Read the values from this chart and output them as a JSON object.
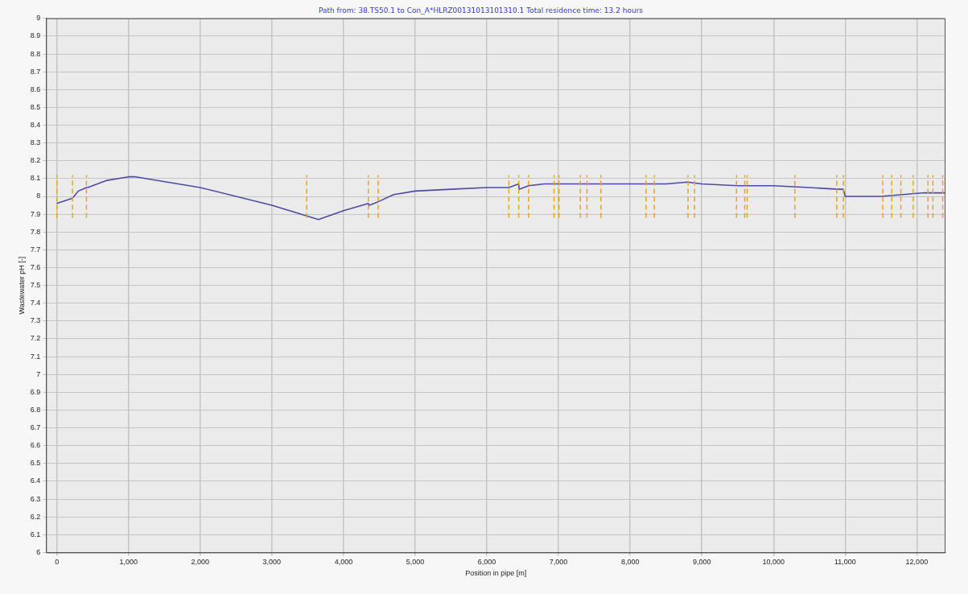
{
  "chart_data": {
    "type": "line",
    "title": "Path from: 38.TS50.1 to Con_A*HLRZ00131013101310.1 Total residence time: 13.2 hours",
    "xlabel": "Position in pipe [m]",
    "ylabel": "Wastewater pH [-]",
    "xlim": [
      -150,
      12400
    ],
    "ylim": [
      6,
      9
    ],
    "xticks": [
      0,
      {
        "value": 1000,
        "label": "1,000"
      },
      {
        "value": 2000,
        "label": "2,000"
      },
      {
        "value": 3000,
        "label": "3,000"
      },
      {
        "value": 4000,
        "label": "4,000"
      },
      {
        "value": 5000,
        "label": "5,000"
      },
      {
        "value": 6000,
        "label": "6,000"
      },
      {
        "value": 7000,
        "label": "7,000"
      },
      {
        "value": 8000,
        "label": "8,000"
      },
      {
        "value": 9000,
        "label": "9,000"
      },
      {
        "value": 10000,
        "label": "10,000"
      },
      {
        "value": 11000,
        "label": "11,000"
      },
      {
        "value": 12000,
        "label": "12,000"
      }
    ],
    "yticks": [
      6,
      6.1,
      6.2,
      6.3,
      6.4,
      6.5,
      6.6,
      6.7,
      6.8,
      6.9,
      7,
      7.1,
      7.2,
      7.3,
      7.4,
      7.5,
      7.6,
      7.7,
      7.8,
      7.9,
      8,
      8.1,
      8.2,
      8.3,
      8.4,
      8.5,
      8.6,
      8.7,
      8.8,
      8.9,
      9
    ],
    "grid": true,
    "legend": false,
    "marker": "none",
    "series": [
      {
        "line_style": "dashed",
        "color": "#e8a317",
        "x": [
          0,
          0,
          null,
          218,
          218,
          null,
          413,
          413,
          null,
          3486,
          3486,
          null,
          4346,
          4346,
          null,
          4484,
          4484,
          null,
          6307,
          6307,
          null,
          6445,
          6445,
          null,
          6583,
          6583,
          null,
          6938,
          6938,
          null,
          7007,
          7007,
          null,
          7305,
          7305,
          null,
          7397,
          7397,
          null,
          7592,
          7592,
          null,
          8222,
          8222,
          null,
          8337,
          8337,
          null,
          8807,
          8807,
          null,
          8899,
          8899,
          null,
          9484,
          9484,
          null,
          9599,
          9599,
          null,
          9633,
          9633,
          null,
          10298,
          10298,
          null,
          10883,
          10883,
          null,
          10975,
          10975,
          null,
          11525,
          11525,
          null,
          11651,
          11651,
          null,
          11778,
          11778,
          null,
          11950,
          11950,
          null,
          12156,
          12156,
          null,
          12225,
          12225,
          null,
          12362,
          12362,
          null
        ],
        "values": [
          7.88,
          8.12,
          null,
          7.88,
          8.12,
          null,
          7.88,
          8.12,
          null,
          7.88,
          8.12,
          null,
          7.88,
          8.12,
          null,
          7.88,
          8.12,
          null,
          7.88,
          8.12,
          null,
          7.88,
          8.12,
          null,
          7.88,
          8.12,
          null,
          7.88,
          8.12,
          null,
          7.88,
          8.12,
          null,
          7.88,
          8.12,
          null,
          7.88,
          8.12,
          null,
          7.88,
          8.12,
          null,
          7.88,
          8.12,
          null,
          7.88,
          8.12,
          null,
          7.88,
          8.12,
          null,
          7.88,
          8.12,
          null,
          7.88,
          8.12,
          null,
          7.88,
          8.12,
          null,
          7.88,
          8.12,
          null,
          7.88,
          8.12,
          null,
          7.88,
          8.12,
          null,
          7.88,
          8.12,
          null,
          7.88,
          8.12,
          null,
          7.88,
          8.12,
          null,
          7.88,
          8.12,
          null,
          7.88,
          8.12,
          null,
          7.88,
          8.12,
          null,
          7.88,
          8.12,
          null,
          7.88,
          8.12,
          null
        ]
      },
      {
        "line_style": "solid",
        "color": "#4b4ba6",
        "x": [
          0,
          218,
          300,
          413,
          430,
          700,
          1000,
          1100,
          2000,
          3000,
          3486,
          3650,
          4000,
          4346,
          4360,
          4484,
          4700,
          5000,
          5500,
          6000,
          6307,
          6445,
          6450,
          6583,
          6800,
          7000,
          8000,
          8500,
          8800,
          9000,
          9500,
          9633,
          10000,
          10500,
          10900,
          10975,
          11000,
          11500,
          11800,
          12100,
          12400
        ],
        "values": [
          7.96,
          7.99,
          8.03,
          8.05,
          8.05,
          8.09,
          8.11,
          8.11,
          8.05,
          7.95,
          7.89,
          7.87,
          7.92,
          7.96,
          7.95,
          7.97,
          8.01,
          8.03,
          8.04,
          8.05,
          8.05,
          8.07,
          8.04,
          8.06,
          8.07,
          8.07,
          8.07,
          8.07,
          8.08,
          8.07,
          8.06,
          8.06,
          8.06,
          8.05,
          8.04,
          8.04,
          8,
          8,
          8.01,
          8.02,
          8.02
        ]
      }
    ]
  }
}
